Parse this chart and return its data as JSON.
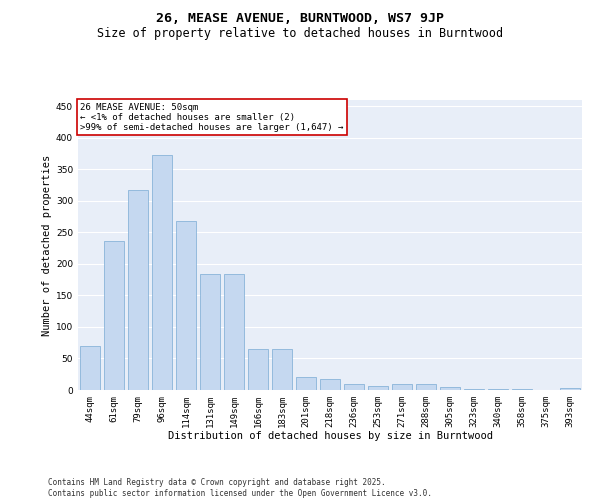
{
  "title": "26, MEASE AVENUE, BURNTWOOD, WS7 9JP",
  "subtitle": "Size of property relative to detached houses in Burntwood",
  "xlabel": "Distribution of detached houses by size in Burntwood",
  "ylabel": "Number of detached properties",
  "categories": [
    "44sqm",
    "61sqm",
    "79sqm",
    "96sqm",
    "114sqm",
    "131sqm",
    "149sqm",
    "166sqm",
    "183sqm",
    "201sqm",
    "218sqm",
    "236sqm",
    "253sqm",
    "271sqm",
    "288sqm",
    "305sqm",
    "323sqm",
    "340sqm",
    "358sqm",
    "375sqm",
    "393sqm"
  ],
  "values": [
    70,
    236,
    317,
    373,
    268,
    184,
    184,
    65,
    65,
    20,
    18,
    10,
    7,
    10,
    10,
    4,
    2,
    1,
    1,
    0,
    3
  ],
  "bar_color": "#c5d8f0",
  "bar_edge_color": "#7aaad4",
  "annotation_box_text": "26 MEASE AVENUE: 50sqm\n← <1% of detached houses are smaller (2)\n>99% of semi-detached houses are larger (1,647) →",
  "annotation_box_color": "#cc0000",
  "annotation_box_fill": "#ffffff",
  "ylim": [
    0,
    460
  ],
  "yticks": [
    0,
    50,
    100,
    150,
    200,
    250,
    300,
    350,
    400,
    450
  ],
  "background_color": "#e8eef8",
  "grid_color": "#ffffff",
  "title_fontsize": 9.5,
  "subtitle_fontsize": 8.5,
  "xlabel_fontsize": 7.5,
  "ylabel_fontsize": 7.5,
  "tick_fontsize": 6.5,
  "annotation_fontsize": 6.5,
  "footer_text": "Contains HM Land Registry data © Crown copyright and database right 2025.\nContains public sector information licensed under the Open Government Licence v3.0.",
  "footer_fontsize": 5.5
}
